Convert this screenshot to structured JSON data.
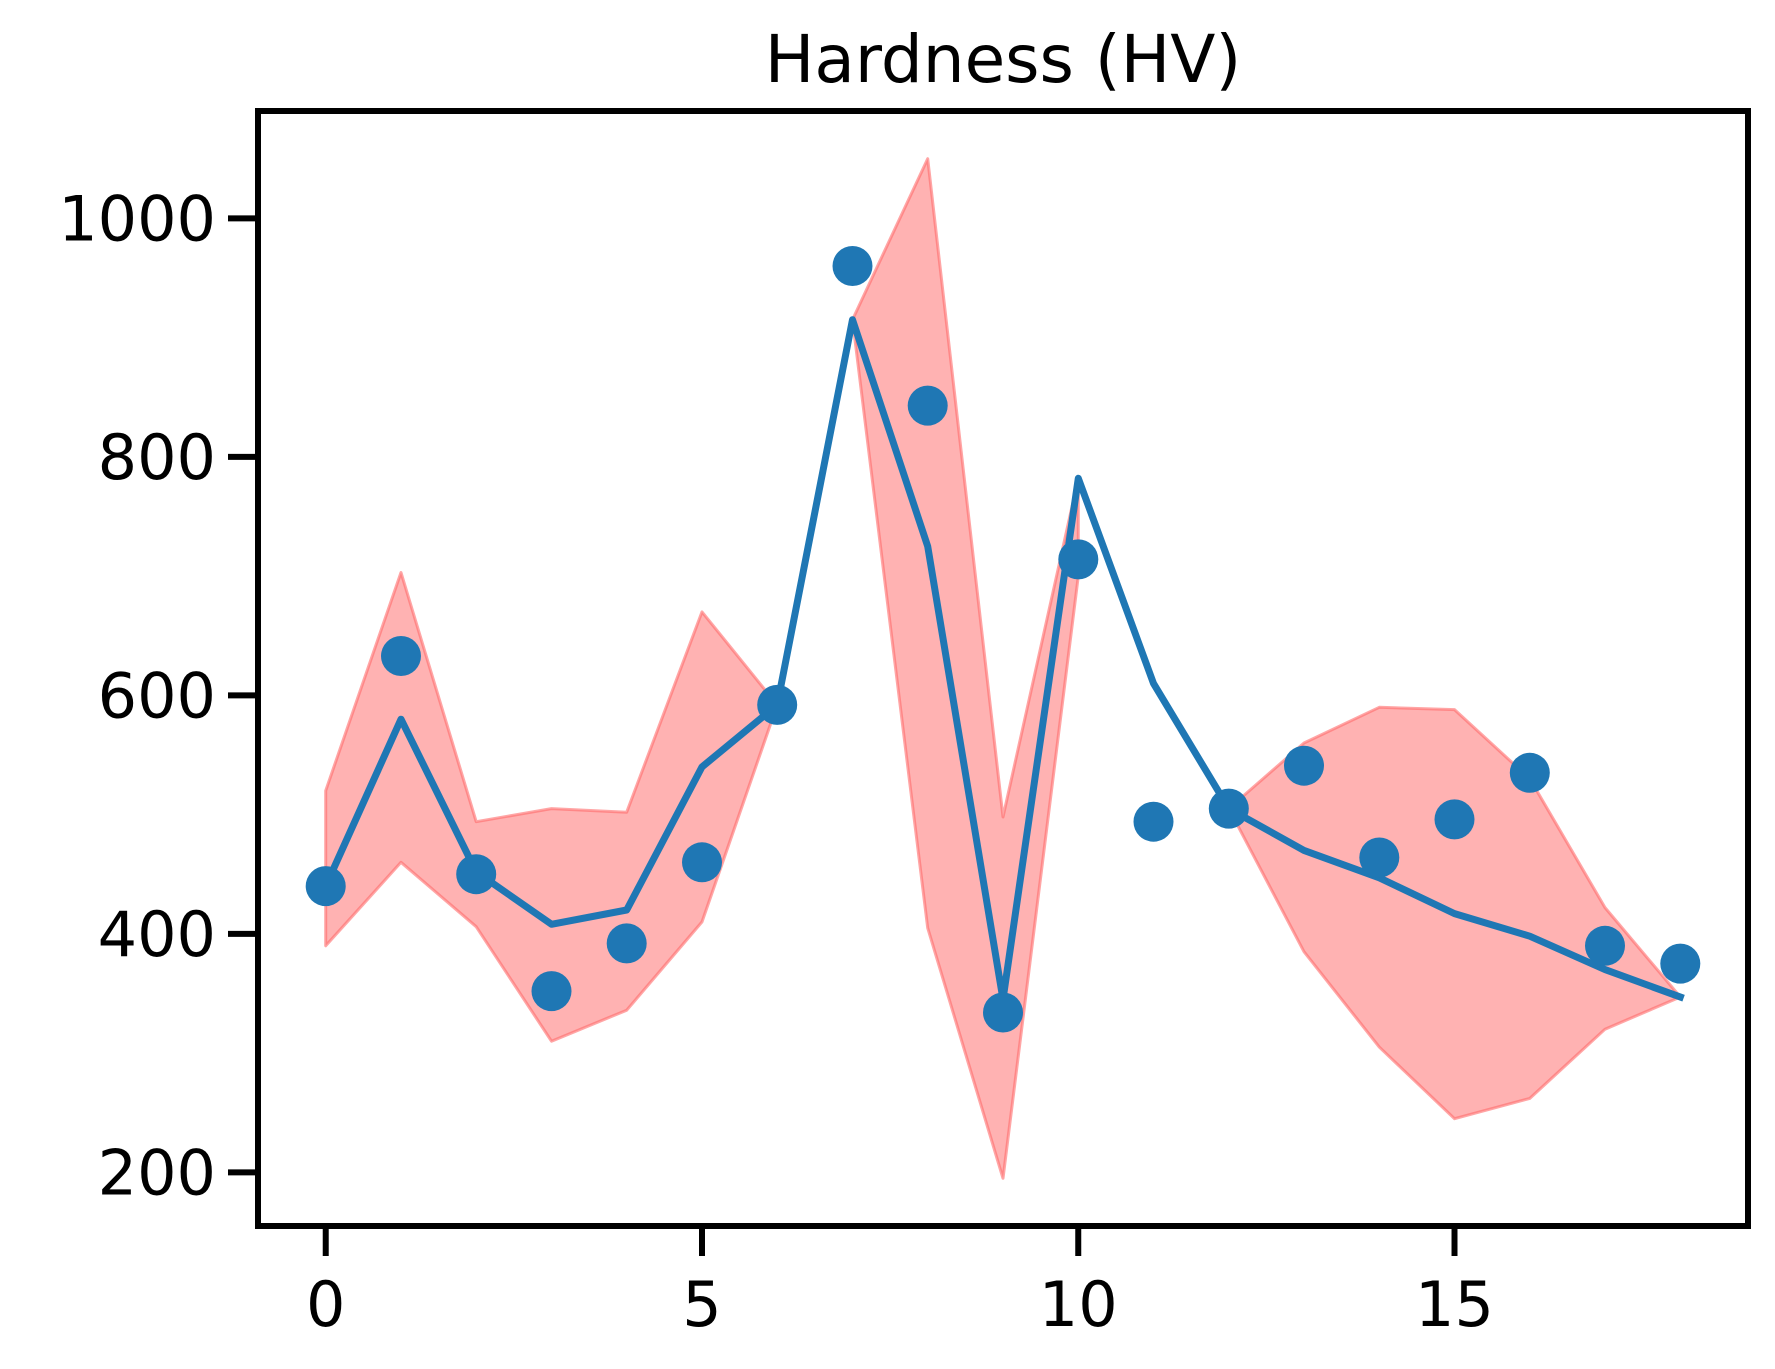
{
  "chart_data": {
    "type": "line",
    "title": "Hardness (HV)",
    "xlabel": "",
    "ylabel": "",
    "xlim": [
      -0.9,
      18.9
    ],
    "ylim": [
      155,
      1090
    ],
    "xticks": [
      0,
      5,
      10,
      15
    ],
    "yticks": [
      200,
      400,
      600,
      800,
      1000
    ],
    "x": [
      0,
      1,
      2,
      3,
      4,
      5,
      6,
      7,
      8,
      9,
      10,
      11,
      12,
      13,
      14,
      15,
      16,
      17,
      18
    ],
    "series": [
      {
        "kind": "line",
        "values": [
          440,
          580,
          452,
          408,
          420,
          540,
          592,
          915,
          725,
          345,
          782,
          610,
          505,
          470,
          447,
          417,
          398,
          370,
          347
        ]
      },
      {
        "kind": "scatter",
        "values": [
          440,
          633,
          450,
          352,
          392,
          460,
          592,
          960,
          843,
          334,
          714,
          494,
          505,
          541,
          464,
          496,
          535,
          390,
          375
        ]
      },
      {
        "kind": "band",
        "lower": [
          390,
          460,
          406,
          310,
          336,
          410,
          592,
          915,
          405,
          195,
          700,
          null,
          505,
          385,
          305,
          245,
          262,
          320,
          347
        ],
        "upper": [
          520,
          703,
          494,
          505,
          502,
          670,
          592,
          915,
          1050,
          498,
          782,
          null,
          505,
          560,
          590,
          588,
          530,
          422,
          347
        ]
      }
    ],
    "colors": {
      "line": "#1f77b4",
      "points": "#1f77b4",
      "band_fill": "#ff7f7f",
      "band_edge": "#ff6b6b",
      "frame": "#000000"
    },
    "grid": false,
    "legend": "none"
  }
}
